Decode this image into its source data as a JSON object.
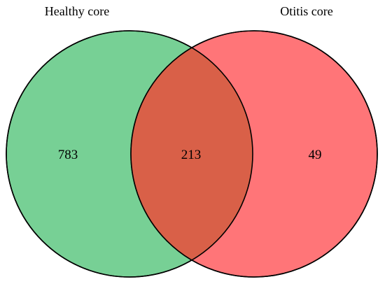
{
  "venn": {
    "sets": [
      {
        "name": "Healthy core",
        "count": "783",
        "color": "#77D095"
      },
      {
        "name": "Otitis core",
        "count": "49",
        "color": "#FF7578"
      }
    ],
    "intersection": {
      "count": "213",
      "color": "#D96048"
    },
    "outline_color": "#000000"
  }
}
